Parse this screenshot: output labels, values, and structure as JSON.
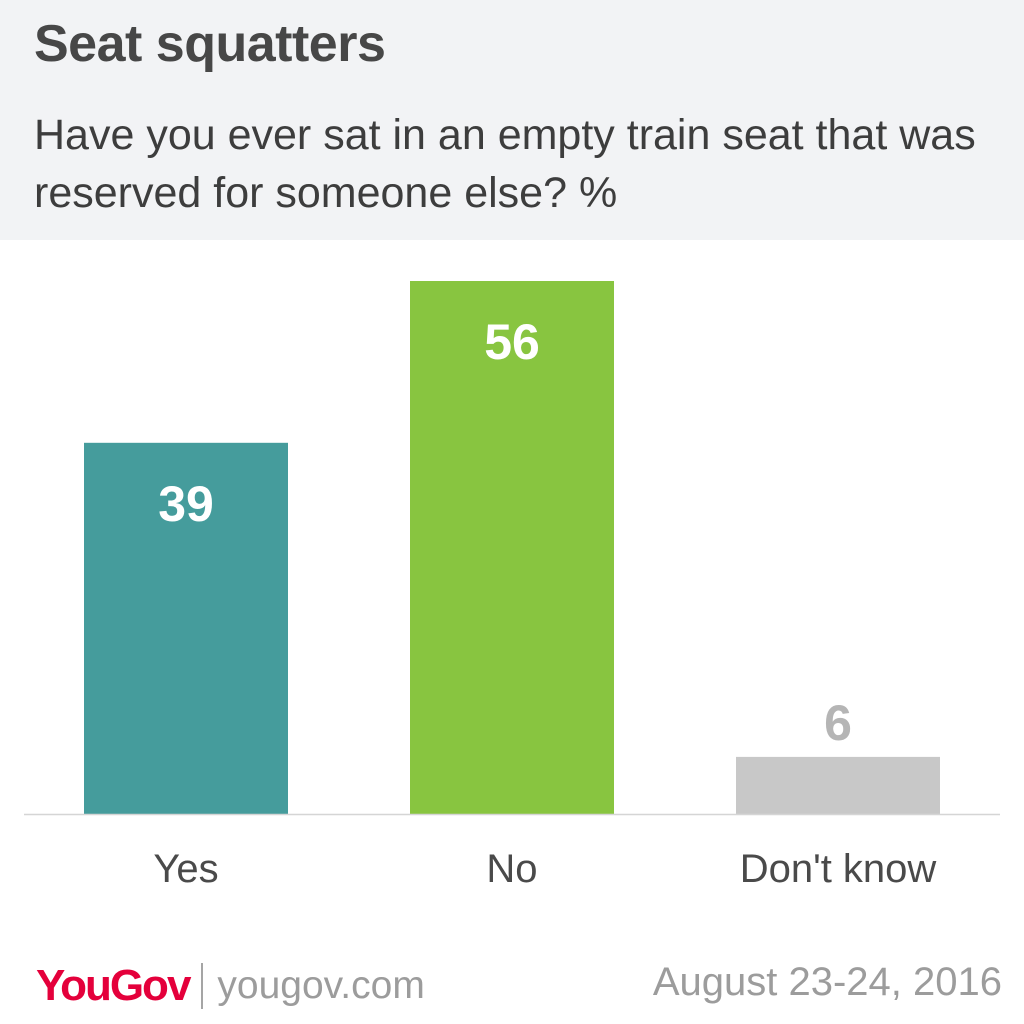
{
  "header": {
    "title": "Seat squatters",
    "question": "Have you ever sat in an empty train seat that was reserved for someone else? %"
  },
  "chart_data": {
    "type": "bar",
    "title": "Seat squatters",
    "subtitle": "Have you ever sat in an empty train seat that was reserved for someone else? %",
    "categories": [
      "Yes",
      "No",
      "Don't know"
    ],
    "values": [
      39,
      56,
      6
    ],
    "colors": [
      "#459c9c",
      "#88c540",
      "#c8c8c8"
    ],
    "value_label_colors": [
      "#ffffff",
      "#ffffff",
      "#b5b5b5"
    ],
    "ylim": [
      0,
      56
    ],
    "grid": false,
    "legend": "none",
    "xlabel": "",
    "ylabel": ""
  },
  "footer": {
    "brand": "YouGov",
    "site": "yougov.com",
    "date": "August 23-24, 2016"
  }
}
